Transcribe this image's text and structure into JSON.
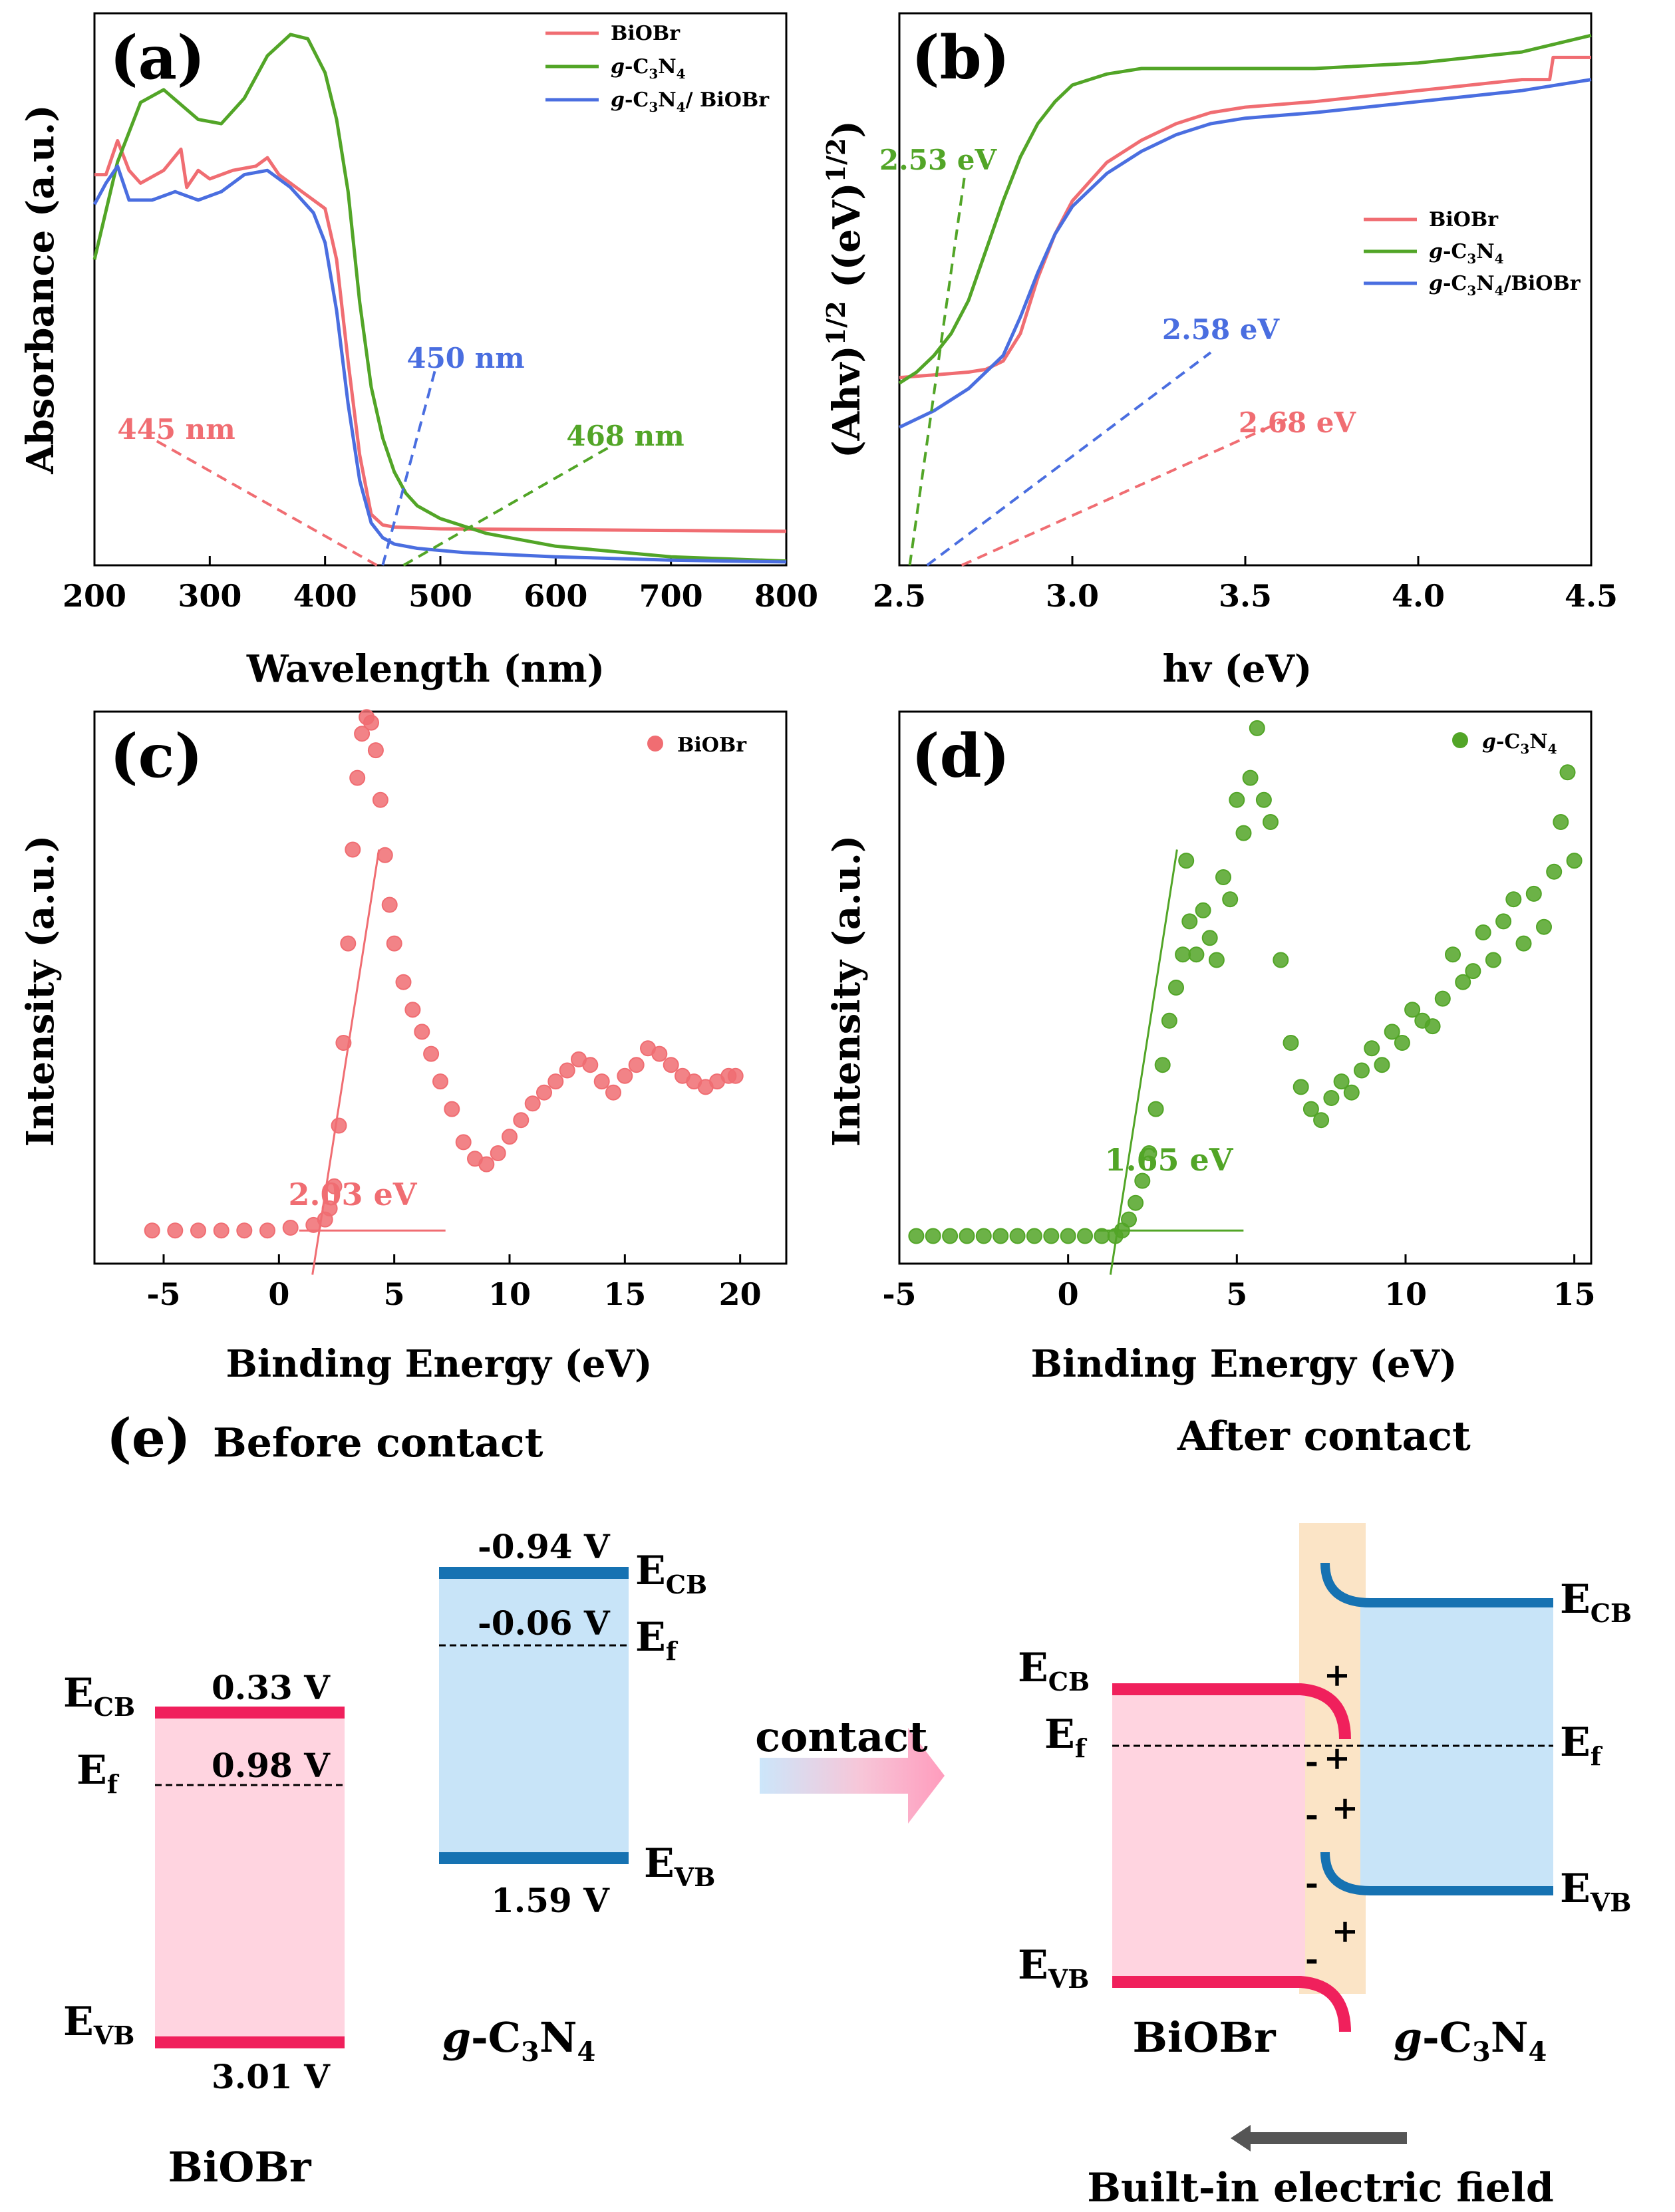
{
  "colors": {
    "biobr": "#f06d72",
    "gcn": "#52a527",
    "composite": "#4a6ee0",
    "pink_band": "#ffd4e0",
    "blue_band": "#c8e4f8",
    "pink_edge": "#f0205c",
    "blue_edge": "#1672b2",
    "interface": "#fbe4c6",
    "arrow_gray": "#555555"
  },
  "chart_data": [
    {
      "panel": "(a)",
      "type": "line",
      "xlabel": "Wavelength (nm)",
      "ylabel": "Absorbance (a.u.)",
      "xlim": [
        200,
        800
      ],
      "ylim": [
        0,
        1.3
      ],
      "xticks": [
        200,
        300,
        400,
        500,
        600,
        700,
        800
      ],
      "series": [
        {
          "name": "BiOBr",
          "x": [
            200,
            210,
            220,
            230,
            240,
            260,
            275,
            280,
            290,
            300,
            320,
            340,
            350,
            360,
            380,
            400,
            410,
            420,
            430,
            440,
            450,
            460,
            480,
            500,
            600,
            700,
            800
          ],
          "y": [
            0.92,
            0.92,
            1.0,
            0.93,
            0.9,
            0.93,
            0.98,
            0.89,
            0.93,
            0.91,
            0.93,
            0.94,
            0.96,
            0.92,
            0.88,
            0.84,
            0.72,
            0.48,
            0.26,
            0.12,
            0.095,
            0.09,
            0.088,
            0.086,
            0.084,
            0.082,
            0.08
          ]
        },
        {
          "name": "g-C3N4",
          "x": [
            200,
            220,
            240,
            260,
            290,
            310,
            330,
            350,
            370,
            385,
            400,
            410,
            420,
            430,
            440,
            450,
            460,
            470,
            480,
            500,
            540,
            600,
            700,
            800
          ],
          "y": [
            0.72,
            0.95,
            1.09,
            1.12,
            1.05,
            1.04,
            1.1,
            1.2,
            1.25,
            1.24,
            1.16,
            1.05,
            0.88,
            0.62,
            0.42,
            0.3,
            0.22,
            0.17,
            0.14,
            0.11,
            0.075,
            0.045,
            0.02,
            0.01
          ]
        },
        {
          "name": "g-C3N4/ BiOBr",
          "x": [
            200,
            210,
            220,
            230,
            250,
            270,
            290,
            310,
            330,
            350,
            370,
            390,
            400,
            410,
            420,
            430,
            440,
            450,
            460,
            480,
            520,
            600,
            700,
            800
          ],
          "y": [
            0.85,
            0.9,
            0.94,
            0.86,
            0.86,
            0.88,
            0.86,
            0.88,
            0.92,
            0.93,
            0.89,
            0.83,
            0.76,
            0.6,
            0.38,
            0.2,
            0.1,
            0.065,
            0.05,
            0.04,
            0.03,
            0.02,
            0.012,
            0.008
          ]
        }
      ],
      "annotations": [
        {
          "text": "445 nm",
          "series": "BiOBr",
          "x_intercept": 445
        },
        {
          "text": "450 nm",
          "series": "g-C3N4/ BiOBr",
          "x_intercept": 450
        },
        {
          "text": "468 nm",
          "series": "g-C3N4",
          "x_intercept": 468
        }
      ],
      "legend": [
        {
          "pre": "BiOBr",
          "series": "BiOBr"
        },
        {
          "pre": "g",
          "mid": "-C",
          "sub1": "3",
          "n": "N",
          "sub2": "4",
          "post": "",
          "series": "g-C3N4"
        },
        {
          "pre": "g",
          "mid": "-C",
          "sub1": "3",
          "n": "N",
          "sub2": "4",
          "post": "/ BiOBr",
          "series": "g-C3N4/ BiOBr"
        }
      ],
      "legend_position": "top-right"
    },
    {
      "panel": "(b)",
      "type": "line",
      "xlabel": "hv (eV)",
      "ylabel": "(Ahv)^1/2 ((eV)^1/2)",
      "xlim": [
        2.5,
        4.5
      ],
      "ylim": [
        0,
        1.0
      ],
      "xticks": [
        2.5,
        3.0,
        3.5,
        4.0,
        4.5
      ],
      "series": [
        {
          "name": "BiOBr",
          "x": [
            2.5,
            2.6,
            2.7,
            2.75,
            2.8,
            2.85,
            2.9,
            2.95,
            3.0,
            3.1,
            3.2,
            3.3,
            3.4,
            3.5,
            3.7,
            4.0,
            4.3,
            4.38,
            4.39,
            4.5
          ],
          "y": [
            0.34,
            0.345,
            0.35,
            0.355,
            0.37,
            0.42,
            0.52,
            0.6,
            0.66,
            0.73,
            0.77,
            0.8,
            0.82,
            0.83,
            0.84,
            0.86,
            0.88,
            0.88,
            0.92,
            0.92
          ]
        },
        {
          "name": "g-C3N4",
          "x": [
            2.5,
            2.55,
            2.6,
            2.65,
            2.7,
            2.75,
            2.8,
            2.85,
            2.9,
            2.95,
            3.0,
            3.1,
            3.2,
            3.3,
            3.5,
            3.7,
            4.0,
            4.3,
            4.5
          ],
          "y": [
            0.33,
            0.35,
            0.38,
            0.42,
            0.48,
            0.57,
            0.66,
            0.74,
            0.8,
            0.84,
            0.87,
            0.89,
            0.9,
            0.9,
            0.9,
            0.9,
            0.91,
            0.93,
            0.96
          ]
        },
        {
          "name": "g-C3N4/BiOBr",
          "x": [
            2.5,
            2.6,
            2.7,
            2.8,
            2.85,
            2.9,
            2.95,
            3.0,
            3.1,
            3.2,
            3.3,
            3.4,
            3.5,
            3.7,
            4.0,
            4.3,
            4.5
          ],
          "y": [
            0.25,
            0.28,
            0.32,
            0.38,
            0.45,
            0.53,
            0.6,
            0.65,
            0.71,
            0.75,
            0.78,
            0.8,
            0.81,
            0.82,
            0.84,
            0.86,
            0.88
          ]
        }
      ],
      "annotations": [
        {
          "text": "2.53 eV",
          "series": "g-C3N4",
          "x_intercept": 2.53
        },
        {
          "text": "2.58 eV",
          "series": "g-C3N4/BiOBr",
          "x_intercept": 2.58
        },
        {
          "text": "2.68 eV",
          "series": "BiOBr",
          "x_intercept": 2.68
        }
      ],
      "legend": [
        {
          "pre": "BiOBr",
          "series": "BiOBr"
        },
        {
          "pre": "g",
          "mid": "-C",
          "sub1": "3",
          "n": "N",
          "sub2": "4",
          "post": "",
          "series": "g-C3N4"
        },
        {
          "pre": "g",
          "mid": "-C",
          "sub1": "3",
          "n": "N",
          "sub2": "4",
          "post": "/BiOBr",
          "series": "g-C3N4/BiOBr"
        }
      ],
      "legend_position": "right"
    },
    {
      "panel": "(c)",
      "type": "scatter",
      "xlabel": "Binding Energy (eV)",
      "ylabel": "Intensity (a.u.)",
      "xlim": [
        -8,
        22
      ],
      "ylim": [
        0,
        1.0
      ],
      "xticks": [
        -5,
        0,
        5,
        10,
        15,
        20
      ],
      "series": [
        {
          "name": "BiOBr",
          "x": [
            -5.5,
            -4.5,
            -3.5,
            -2.5,
            -1.5,
            -0.5,
            0.5,
            1.5,
            2.0,
            2.2,
            2.4,
            2.6,
            2.8,
            3.0,
            3.2,
            3.4,
            3.6,
            3.8,
            4.0,
            4.2,
            4.4,
            4.6,
            4.8,
            5.0,
            5.4,
            5.8,
            6.2,
            6.6,
            7.0,
            7.5,
            8.0,
            8.5,
            9.0,
            9.5,
            10.0,
            10.5,
            11.0,
            11.5,
            12.0,
            12.5,
            13.0,
            13.5,
            14.0,
            14.5,
            15.0,
            15.5,
            16.0,
            16.5,
            17.0,
            17.5,
            18.0,
            18.5,
            19.0,
            19.5,
            19.8
          ],
          "y": [
            0.06,
            0.06,
            0.06,
            0.06,
            0.06,
            0.06,
            0.065,
            0.07,
            0.08,
            0.1,
            0.14,
            0.25,
            0.4,
            0.58,
            0.75,
            0.88,
            0.96,
            0.99,
            0.98,
            0.93,
            0.84,
            0.74,
            0.65,
            0.58,
            0.51,
            0.46,
            0.42,
            0.38,
            0.33,
            0.28,
            0.22,
            0.19,
            0.18,
            0.2,
            0.23,
            0.26,
            0.29,
            0.31,
            0.33,
            0.35,
            0.37,
            0.36,
            0.33,
            0.31,
            0.34,
            0.36,
            0.39,
            0.38,
            0.36,
            0.34,
            0.33,
            0.32,
            0.33,
            0.34,
            0.34
          ]
        }
      ],
      "annotations": [
        {
          "text": "2.03 eV",
          "x_intercept": 2.03
        }
      ],
      "legend": [
        {
          "pre": "BiOBr",
          "series": "BiOBr"
        }
      ],
      "legend_position": "top-right"
    },
    {
      "panel": "(d)",
      "type": "scatter",
      "xlabel": "Binding Energy (eV)",
      "ylabel": "Intensity (a.u.)",
      "xlim": [
        -5,
        15.5
      ],
      "ylim": [
        0,
        1.0
      ],
      "xticks": [
        -5,
        0,
        5,
        10,
        15
      ],
      "series": [
        {
          "name": "g-C3N4",
          "x": [
            -4.5,
            -4.0,
            -3.5,
            -3.0,
            -2.5,
            -2.0,
            -1.5,
            -1.0,
            -0.5,
            0.0,
            0.5,
            1.0,
            1.4,
            1.6,
            1.8,
            2.0,
            2.2,
            2.4,
            2.6,
            2.8,
            3.0,
            3.2,
            3.4,
            3.5,
            3.6,
            3.8,
            4.0,
            4.2,
            4.4,
            4.6,
            4.8,
            5.0,
            5.2,
            5.4,
            5.6,
            5.8,
            6.0,
            6.3,
            6.6,
            6.9,
            7.2,
            7.5,
            7.8,
            8.1,
            8.4,
            8.7,
            9.0,
            9.3,
            9.6,
            9.9,
            10.2,
            10.5,
            10.8,
            11.1,
            11.4,
            11.7,
            12.0,
            12.3,
            12.6,
            12.9,
            13.2,
            13.5,
            13.8,
            14.1,
            14.4,
            14.6,
            14.8,
            15.0
          ],
          "y": [
            0.05,
            0.05,
            0.05,
            0.05,
            0.05,
            0.05,
            0.05,
            0.05,
            0.05,
            0.05,
            0.05,
            0.05,
            0.05,
            0.06,
            0.08,
            0.11,
            0.15,
            0.2,
            0.28,
            0.36,
            0.44,
            0.5,
            0.56,
            0.73,
            0.62,
            0.56,
            0.64,
            0.59,
            0.55,
            0.7,
            0.66,
            0.84,
            0.78,
            0.88,
            0.97,
            0.84,
            0.8,
            0.55,
            0.4,
            0.32,
            0.28,
            0.26,
            0.3,
            0.33,
            0.31,
            0.35,
            0.39,
            0.36,
            0.42,
            0.4,
            0.46,
            0.44,
            0.43,
            0.48,
            0.56,
            0.51,
            0.53,
            0.6,
            0.55,
            0.62,
            0.66,
            0.58,
            0.67,
            0.61,
            0.71,
            0.8,
            0.89,
            0.73
          ]
        }
      ],
      "annotations": [
        {
          "text": "1.65 eV",
          "x_intercept": 1.65
        }
      ],
      "legend": [
        {
          "pre": "g",
          "mid": "-C",
          "sub1": "3",
          "n": "N",
          "sub2": "4",
          "post": "",
          "series": "g-C3N4"
        }
      ],
      "legend_position": "top-right"
    }
  ],
  "panel_labels": {
    "a": "(a)",
    "b": "(b)",
    "c": "(c)",
    "d": "(d)",
    "e": "(e)"
  },
  "axis_text": {
    "a_ylabel": "Absorbance (a.u.)",
    "a_xlabel": "Wavelength (nm)",
    "b_ylabel_1": "(Ahv)",
    "b_ylabel_sup1": "1/2",
    "b_ylabel_2": " ((eV)",
    "b_ylabel_sup2": "1/2",
    "b_ylabel_3": ")",
    "b_xlabel": "hv (eV)",
    "c_ylabel": "Intensity (a.u.)",
    "c_xlabel": "Binding Energy (eV)",
    "d_ylabel": "Intensity (a.u.)",
    "d_xlabel": "Binding Energy (eV)"
  },
  "diagram": {
    "before_title": "Before contact",
    "after_title": "After contact",
    "contact_label": "contact",
    "field_label": "Built-in electric field",
    "biobr_name": "BiOBr",
    "gcn": {
      "pre": "g",
      "mid": "-C",
      "sub1": "3",
      "n": "N",
      "sub2": "4"
    },
    "biobr_cb": "0.33 V",
    "biobr_ef": "0.98 V",
    "biobr_vb": "3.01 V",
    "gcn_cb": "-0.94 V",
    "gcn_ef": "-0.06 V",
    "gcn_vb": "1.59 V",
    "e_label": "E",
    "cb_sub": "CB",
    "vb_sub": "VB",
    "f_sub": "f",
    "plus": "+",
    "minus": "-"
  }
}
